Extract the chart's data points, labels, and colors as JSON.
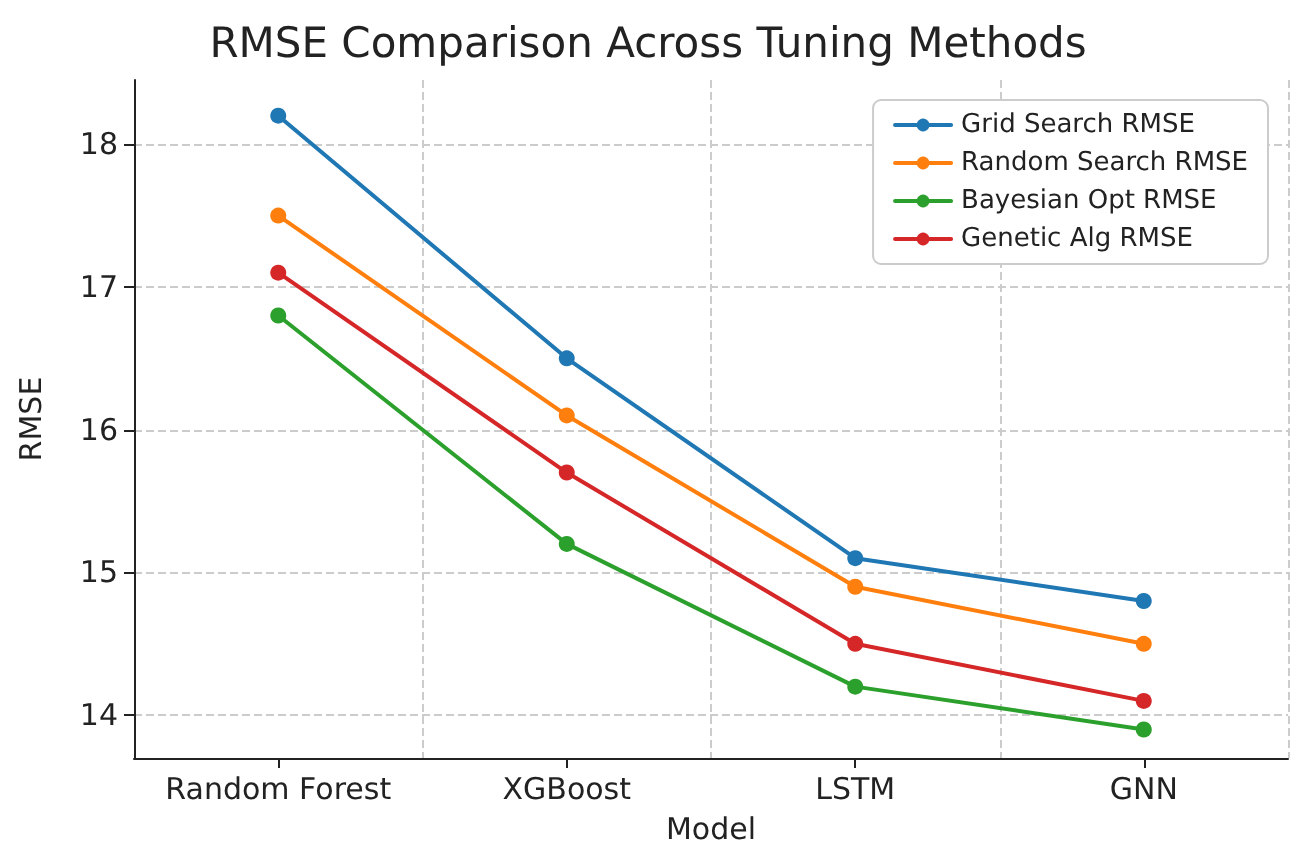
{
  "chart_data": {
    "type": "line",
    "title": "RMSE Comparison Across Tuning Methods",
    "xlabel": "Model",
    "ylabel": "RMSE",
    "categories": [
      "Random Forest",
      "XGBoost",
      "LSTM",
      "GNN"
    ],
    "series": [
      {
        "name": "Grid Search RMSE",
        "color": "#1f77b4",
        "values": [
          18.2,
          16.5,
          15.1,
          14.8
        ]
      },
      {
        "name": "Random Search RMSE",
        "color": "#ff7f0e",
        "values": [
          17.5,
          16.1,
          14.9,
          14.5
        ]
      },
      {
        "name": "Bayesian Opt RMSE",
        "color": "#2ca02c",
        "values": [
          16.8,
          15.2,
          14.2,
          13.9
        ]
      },
      {
        "name": "Genetic Alg RMSE",
        "color": "#d62728",
        "values": [
          17.1,
          15.7,
          14.5,
          14.1
        ]
      }
    ],
    "ylim": [
      13.7,
      18.45
    ],
    "yticks": [
      14,
      15,
      16,
      17,
      18
    ],
    "grid": true,
    "legend": "top right",
    "marker": "circle",
    "line_style": "solid"
  }
}
